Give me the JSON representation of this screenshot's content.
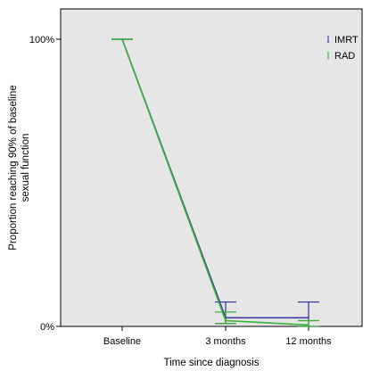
{
  "chart_data": {
    "type": "line",
    "categories": [
      "Baseline",
      "3 months",
      "12 months"
    ],
    "xlabel": "Time since diagnosis",
    "ylabel_lines": [
      "Proportion reaching 90% of baseline",
      "sexual function"
    ],
    "ylim": [
      0,
      1.08
    ],
    "ytick_values": [
      0,
      1
    ],
    "ytick_labels": [
      "0%",
      "100%"
    ],
    "grid": false,
    "legend_placement": "top-right",
    "series": [
      {
        "name": "IMRT",
        "color": "#3f3f9f",
        "values": [
          1.0,
          0.03,
          0.03
        ],
        "err_low": [
          1.0,
          0.01,
          0.0
        ],
        "err_high": [
          1.0,
          0.085,
          0.085
        ]
      },
      {
        "name": "RAD",
        "color": "#3ab23a",
        "values": [
          1.0,
          0.02,
          0.005
        ],
        "err_low": [
          1.0,
          0.01,
          0.0
        ],
        "err_high": [
          1.0,
          0.05,
          0.02
        ]
      }
    ],
    "legend_marker": "I",
    "plot_background": "#e6e6e6"
  }
}
